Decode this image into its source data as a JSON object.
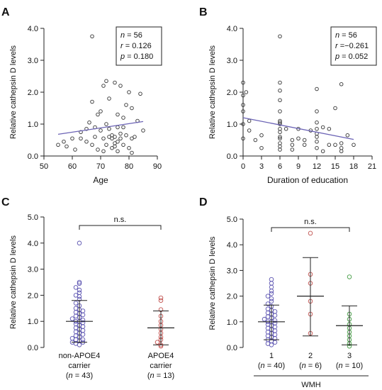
{
  "chart_data": [
    {
      "panel_label": "A",
      "type": "scatter",
      "xlabel": "Age",
      "ylabel": "Relative cathepsin D levels",
      "xlim": [
        50,
        90
      ],
      "ylim": [
        0,
        4
      ],
      "xticks": [
        50,
        60,
        70,
        80,
        90
      ],
      "yticks": [
        0,
        1,
        2,
        3,
        4
      ],
      "xtick_labels": [
        "50",
        "60",
        "70",
        "80",
        "90"
      ],
      "ytick_labels": [
        "0.0",
        "1.0",
        "2.0",
        "3.0",
        "4.0"
      ],
      "points": [
        [
          55,
          0.35
        ],
        [
          57,
          0.45
        ],
        [
          58,
          0.3
        ],
        [
          60,
          0.55
        ],
        [
          61,
          0.2
        ],
        [
          63,
          0.55
        ],
        [
          63,
          0.75
        ],
        [
          65,
          0.45
        ],
        [
          65,
          0.85
        ],
        [
          66,
          1.05
        ],
        [
          67,
          0.35
        ],
        [
          67,
          1.7
        ],
        [
          67,
          3.75
        ],
        [
          68,
          0.6
        ],
        [
          68,
          0.9
        ],
        [
          69,
          0.2
        ],
        [
          69,
          1.3
        ],
        [
          70,
          0.8
        ],
        [
          70,
          1.4
        ],
        [
          71,
          0.15
        ],
        [
          71,
          0.55
        ],
        [
          71,
          2.2
        ],
        [
          72,
          0.35
        ],
        [
          72,
          1.0
        ],
        [
          72,
          2.35
        ],
        [
          73,
          0.6
        ],
        [
          73,
          0.85
        ],
        [
          73,
          1.8
        ],
        [
          74,
          0.25
        ],
        [
          74,
          0.55
        ],
        [
          74,
          0.65
        ],
        [
          75,
          0.3
        ],
        [
          75,
          0.4
        ],
        [
          75,
          0.6
        ],
        [
          75,
          2.3
        ],
        [
          76,
          0.15
        ],
        [
          76,
          0.45
        ],
        [
          76,
          0.9
        ],
        [
          76,
          1.3
        ],
        [
          77,
          0.55
        ],
        [
          77,
          0.7
        ],
        [
          77,
          2.2
        ],
        [
          78,
          0.35
        ],
        [
          78,
          0.9
        ],
        [
          78,
          1.2
        ],
        [
          79,
          0.65
        ],
        [
          79,
          1.6
        ],
        [
          80,
          0.25
        ],
        [
          80,
          2.0
        ],
        [
          81,
          0.1
        ],
        [
          81,
          0.55
        ],
        [
          81,
          1.5
        ],
        [
          82,
          0.6
        ],
        [
          83,
          1.1
        ],
        [
          84,
          1.95
        ],
        [
          85,
          0.8
        ]
      ],
      "regression": {
        "x": [
          55,
          85
        ],
        "y": [
          0.68,
          1.08
        ]
      },
      "stats": [
        {
          "label": "n",
          "value": " = 56"
        },
        {
          "label": "r",
          "value": " = 0.126"
        },
        {
          "label": "p",
          "value": " = 0.180"
        }
      ],
      "point_color": "#333333",
      "line_color": "#6b63b5"
    },
    {
      "panel_label": "B",
      "type": "scatter",
      "xlabel": "Duration of education",
      "ylabel": "Relative cathepsin D levels",
      "xlim": [
        0,
        21
      ],
      "ylim": [
        0,
        4
      ],
      "xticks": [
        0,
        3,
        6,
        9,
        12,
        15,
        18,
        21
      ],
      "yticks": [
        0,
        1,
        2,
        3,
        4
      ],
      "xtick_labels": [
        "0",
        "3",
        "6",
        "9",
        "12",
        "15",
        "18",
        "21"
      ],
      "ytick_labels": [
        "0.0",
        "1.0",
        "2.0",
        "3.0",
        "4.0"
      ],
      "points": [
        [
          0,
          0.55
        ],
        [
          0,
          1.0
        ],
        [
          0,
          1.4
        ],
        [
          0,
          1.6
        ],
        [
          0,
          1.9
        ],
        [
          0,
          2.3
        ],
        [
          0.5,
          2.0
        ],
        [
          1,
          1.1
        ],
        [
          1,
          0.8
        ],
        [
          2,
          0.5
        ],
        [
          3,
          0.25
        ],
        [
          6,
          0.2
        ],
        [
          6,
          0.3
        ],
        [
          6,
          0.4
        ],
        [
          6,
          0.6
        ],
        [
          6,
          0.75
        ],
        [
          6,
          0.85
        ],
        [
          6,
          1.0
        ],
        [
          6,
          1.05
        ],
        [
          6,
          1.1
        ],
        [
          6,
          1.4
        ],
        [
          6,
          1.75
        ],
        [
          6,
          2.05
        ],
        [
          6,
          2.3
        ],
        [
          6,
          3.75
        ],
        [
          7,
          0.85
        ],
        [
          8,
          0.2
        ],
        [
          8,
          0.35
        ],
        [
          8,
          0.5
        ],
        [
          9,
          0.55
        ],
        [
          9,
          0.85
        ],
        [
          10,
          0.5
        ],
        [
          11,
          0.8
        ],
        [
          12,
          0.25
        ],
        [
          12,
          0.45
        ],
        [
          12,
          0.6
        ],
        [
          12,
          0.7
        ],
        [
          12,
          0.85
        ],
        [
          12,
          1.05
        ],
        [
          12,
          1.4
        ],
        [
          12,
          2.1
        ],
        [
          13,
          0.15
        ],
        [
          13,
          0.9
        ],
        [
          14,
          0.35
        ],
        [
          14,
          0.85
        ],
        [
          15,
          1.5
        ],
        [
          16,
          0.15
        ],
        [
          16,
          0.25
        ],
        [
          16,
          0.4
        ],
        [
          16,
          2.25
        ],
        [
          17,
          0.65
        ],
        [
          18,
          0.35
        ],
        [
          15,
          0.35
        ],
        [
          10,
          0.35
        ],
        [
          6,
          0.55
        ],
        [
          3,
          0.65
        ]
      ],
      "regression": {
        "x": [
          0,
          18
        ],
        "y": [
          1.2,
          0.52
        ]
      },
      "stats": [
        {
          "label": "n",
          "value": " = 56"
        },
        {
          "label": "r",
          "value": " =−0.261"
        },
        {
          "label": "p",
          "value": " = 0.052"
        }
      ],
      "point_color": "#333333",
      "line_color": "#6b63b5"
    },
    {
      "panel_label": "C",
      "type": "scatter",
      "ylabel": "Relative cathepsin D levels",
      "ylim": [
        0,
        5
      ],
      "yticks": [
        0,
        1,
        2,
        3,
        4,
        5
      ],
      "ytick_labels": [
        "0.0",
        "1.0",
        "2.0",
        "3.0",
        "4.0",
        "5.0"
      ],
      "groups": [
        {
          "lines": [
            "non-APOE4",
            "carrier",
            "(n = 43)"
          ],
          "color": "#5a52b0",
          "mean": 1.0,
          "sd_low": 0.2,
          "sd_high": 1.8,
          "values": [
            0.1,
            0.15,
            0.2,
            0.2,
            0.25,
            0.3,
            0.3,
            0.35,
            0.4,
            0.45,
            0.5,
            0.55,
            0.6,
            0.65,
            0.7,
            0.75,
            0.8,
            0.85,
            0.9,
            0.95,
            1.0,
            1.0,
            1.05,
            1.1,
            1.15,
            1.2,
            1.25,
            1.3,
            1.35,
            1.4,
            1.45,
            1.5,
            1.6,
            1.7,
            1.85,
            1.95,
            2.0,
            2.1,
            2.2,
            2.3,
            2.45,
            2.5,
            4.0
          ]
        },
        {
          "lines": [
            "APOE4",
            "carrier",
            "(n = 13)"
          ],
          "color": "#c0504d",
          "mean": 0.75,
          "sd_low": 0.1,
          "sd_high": 1.4,
          "values": [
            0.05,
            0.1,
            0.2,
            0.3,
            0.4,
            0.55,
            0.7,
            0.85,
            1.0,
            1.2,
            1.45,
            1.8,
            1.9
          ]
        }
      ],
      "significance": "n.s."
    },
    {
      "panel_label": "D",
      "type": "scatter",
      "ylabel": "Relative cathepsin D levels",
      "xlabel": "WMH",
      "ylim": [
        0,
        5
      ],
      "yticks": [
        0,
        1,
        2,
        3,
        4,
        5
      ],
      "ytick_labels": [
        "0.0",
        "1.0",
        "2.0",
        "3.0",
        "4.0",
        "5.0"
      ],
      "groups": [
        {
          "lines": [
            "1",
            "(n = 40)"
          ],
          "color": "#5a52b0",
          "mean": 1.0,
          "sd_low": 0.3,
          "sd_high": 1.65,
          "values": [
            0.1,
            0.15,
            0.2,
            0.25,
            0.3,
            0.35,
            0.4,
            0.45,
            0.5,
            0.55,
            0.6,
            0.65,
            0.7,
            0.75,
            0.8,
            0.85,
            0.9,
            0.95,
            1.0,
            1.0,
            1.05,
            1.1,
            1.15,
            1.2,
            1.25,
            1.3,
            1.35,
            1.4,
            1.45,
            1.5,
            1.6,
            1.7,
            1.8,
            1.9,
            2.0,
            2.1,
            2.2,
            2.35,
            2.5,
            2.65
          ]
        },
        {
          "lines": [
            "2",
            "(n = 6)"
          ],
          "color": "#c0504d",
          "mean": 2.0,
          "sd_low": 0.45,
          "sd_high": 3.5,
          "values": [
            0.55,
            1.3,
            1.8,
            2.5,
            2.85,
            4.45
          ]
        },
        {
          "lines": [
            "3",
            "(n = 10)"
          ],
          "color": "#3f9a3f",
          "mean": 0.85,
          "sd_low": 0.1,
          "sd_high": 1.62,
          "values": [
            0.05,
            0.15,
            0.3,
            0.45,
            0.6,
            0.75,
            0.9,
            1.1,
            1.3,
            2.75
          ]
        }
      ],
      "significance": "n.s."
    }
  ]
}
